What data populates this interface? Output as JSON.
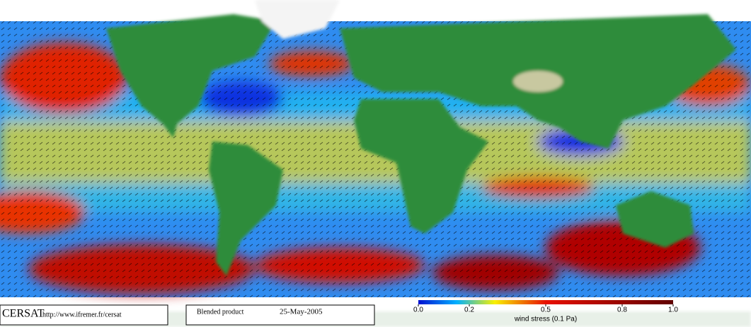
{
  "footer": {
    "logo": "CERSAT",
    "url": "http://www.ifremer.fr/cersat",
    "product": "Blended product",
    "date": "25-May-2005"
  },
  "colorbar": {
    "label": "wind stress (0.1 Pa)",
    "lim": [
      0,
      1
    ],
    "ticks": [
      {
        "value": 0,
        "label": "0.0"
      },
      0.2,
      0.5,
      0.8,
      {
        "value": 1,
        "label": "1.0"
      }
    ]
  }
}
